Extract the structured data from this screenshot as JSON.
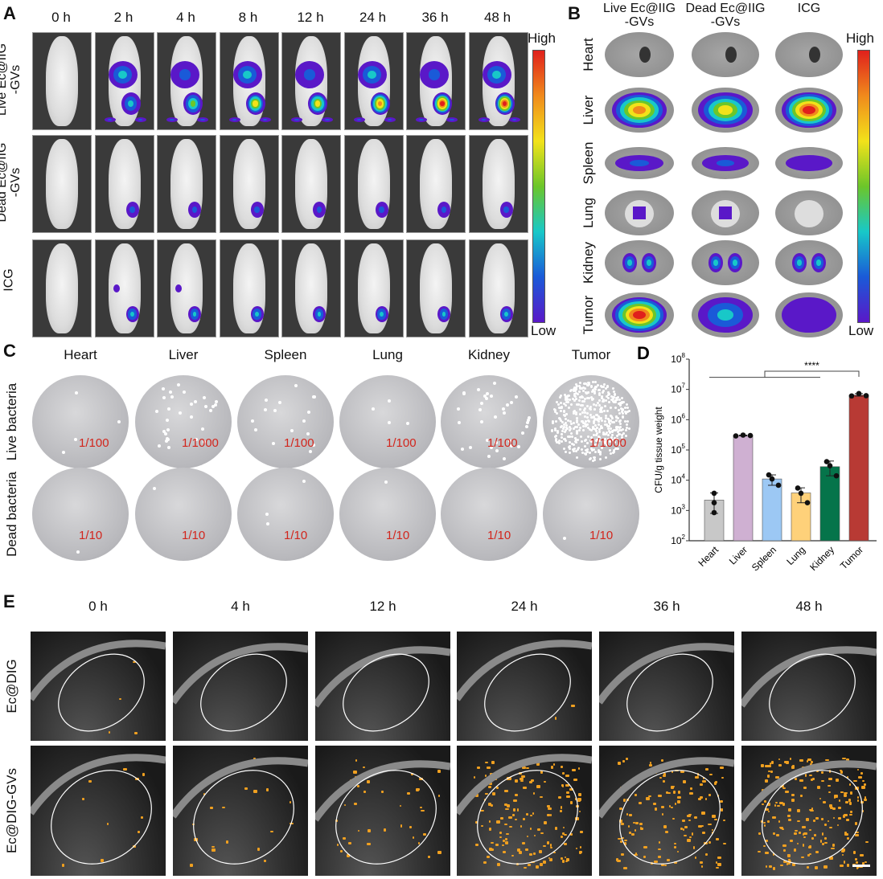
{
  "panel_a": {
    "label": "A",
    "timepoints": [
      "0 h",
      "2 h",
      "4 h",
      "8 h",
      "12 h",
      "24 h",
      "36 h",
      "48 h"
    ],
    "rows": [
      {
        "label_line1": "Live Ec@IIG",
        "label_line2": "-GVs"
      },
      {
        "label_line1": "Dead Ec@IIG",
        "label_line2": "-GVs"
      },
      {
        "label_line1": "ICG",
        "label_line2": ""
      }
    ],
    "colorbar": {
      "high": "High",
      "low": "Low"
    }
  },
  "panel_b": {
    "label": "B",
    "columns": [
      {
        "line1": "Live Ec@IIG",
        "line2": "-GVs"
      },
      {
        "line1": "Dead Ec@IIG",
        "line2": "-GVs"
      },
      {
        "line1": "ICG",
        "line2": ""
      }
    ],
    "organs": [
      "Heart",
      "Liver",
      "Spleen",
      "Lung",
      "Kidney",
      "Tumor"
    ],
    "colorbar": {
      "high": "High",
      "low": "Low"
    }
  },
  "panel_c": {
    "label": "C",
    "organs": [
      "Heart",
      "Liver",
      "Spleen",
      "Lung",
      "Kidney",
      "Tumor"
    ],
    "rows": [
      {
        "label": "Live bacteria",
        "dilutions": [
          "1/100",
          "1/1000",
          "1/100",
          "1/100",
          "1/100",
          "1/1000"
        ]
      },
      {
        "label": "Dead bacteria",
        "dilutions": [
          "1/10",
          "1/10",
          "1/10",
          "1/10",
          "1/10",
          "1/10"
        ]
      }
    ]
  },
  "chart_data": {
    "type": "bar",
    "panel_label": "D",
    "ylabel": "CFU/g tissue weight",
    "yscale": "log",
    "ylim": [
      100,
      100000000
    ],
    "yticks": [
      "10^2",
      "10^3",
      "10^4",
      "10^5",
      "10^6",
      "10^7",
      "10^8"
    ],
    "categories": [
      "Heart",
      "Liver",
      "Spleen",
      "Lung",
      "Kidney",
      "Tumor"
    ],
    "values": [
      2200,
      300000,
      11000,
      3800,
      28000,
      6500000
    ],
    "error_upper": [
      3800,
      310000,
      15000,
      5600,
      43000,
      7300000
    ],
    "error_lower": [
      800,
      290000,
      6800,
      1800,
      14000,
      6000000
    ],
    "points": [
      [
        3700,
        1800,
        850
      ],
      [
        290000,
        310000,
        300000
      ],
      [
        15000,
        6800,
        11000
      ],
      [
        5500,
        1800,
        3700
      ],
      [
        41000,
        14000,
        30000
      ],
      [
        6100000,
        7300000,
        6200000
      ]
    ],
    "colors": [
      "#c8c8c8",
      "#cfb0d2",
      "#9cc8f4",
      "#fed17a",
      "#05744a",
      "#b83a34"
    ],
    "significance": "****"
  },
  "panel_e": {
    "label": "E",
    "timepoints": [
      "0 h",
      "4 h",
      "12 h",
      "24 h",
      "36 h",
      "48 h"
    ],
    "rows": [
      "Ec@DIG",
      "Ec@DIG-GVs"
    ],
    "contrast_color": "#f0a020"
  }
}
